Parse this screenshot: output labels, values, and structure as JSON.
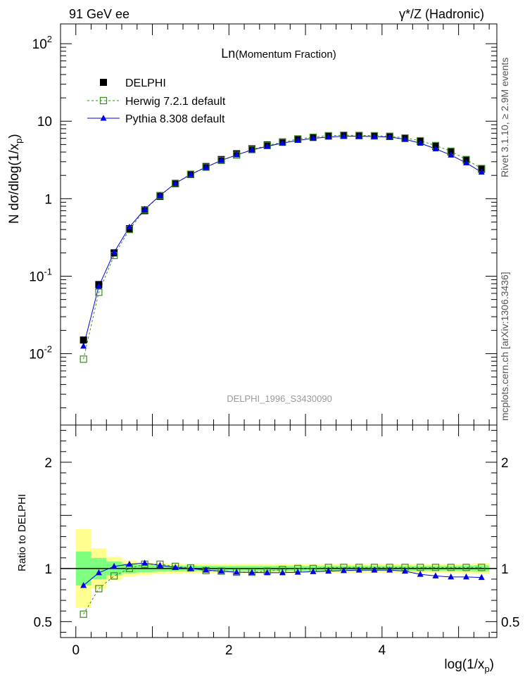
{
  "header": {
    "left": "91 GeV ee",
    "right": "γ*/Z (Hadronic)"
  },
  "side_labels": {
    "top": "Rivet 3.1.10, ≥ 2.9M events",
    "bottom": "mcplots.cern.ch [arXiv:1306.3436]"
  },
  "watermark": "DELPHI_1996_S3430090",
  "chart_data": [
    {
      "type": "scatter",
      "panel": "main",
      "title": "Ln(Momentum Fraction)",
      "xlabel": "log(1/x_p)",
      "ylabel": "N dσ/dlog(1/x_p)",
      "yscale": "log",
      "xlim": [
        -0.2,
        5.5
      ],
      "ylim": [
        0.0012,
        180
      ],
      "yticks": [
        0.01,
        0.1,
        1,
        10,
        100
      ],
      "ytick_labels": [
        "10^-2",
        "10^-1",
        "1",
        "10",
        "10^2"
      ],
      "legend_placement": "top-left",
      "x": [
        0.1,
        0.3,
        0.5,
        0.7,
        0.9,
        1.1,
        1.3,
        1.5,
        1.7,
        1.9,
        2.1,
        2.3,
        2.5,
        2.7,
        2.9,
        3.1,
        3.3,
        3.5,
        3.7,
        3.9,
        4.1,
        4.3,
        4.5,
        4.7,
        4.9,
        5.1,
        5.3
      ],
      "series": [
        {
          "name": "DELPHI",
          "color": "#000000",
          "marker": "filled-square",
          "values": [
            0.015,
            0.078,
            0.2,
            0.41,
            0.7,
            1.07,
            1.56,
            2.05,
            2.6,
            3.2,
            3.8,
            4.4,
            4.95,
            5.4,
            5.9,
            6.2,
            6.45,
            6.55,
            6.5,
            6.45,
            6.35,
            6.0,
            5.5,
            4.75,
            4.0,
            3.15,
            2.4
          ]
        },
        {
          "name": "Herwig 7.2.1 default",
          "color": "#3a8a1f",
          "marker": "open-square",
          "line": "dashed",
          "values": [
            0.0085,
            0.062,
            0.185,
            0.4,
            0.72,
            1.1,
            1.58,
            2.07,
            2.55,
            3.12,
            3.65,
            4.3,
            4.85,
            5.35,
            5.9,
            6.2,
            6.5,
            6.6,
            6.55,
            6.5,
            6.4,
            6.08,
            5.6,
            4.85,
            4.1,
            3.2,
            2.45
          ]
        },
        {
          "name": "Pythia 8.308 default",
          "color": "#0000e6",
          "marker": "filled-triangle",
          "line": "solid",
          "values": [
            0.0125,
            0.074,
            0.203,
            0.43,
            0.73,
            1.1,
            1.58,
            2.05,
            2.55,
            3.12,
            3.67,
            4.25,
            4.75,
            5.22,
            5.65,
            6.0,
            6.25,
            6.4,
            6.4,
            6.35,
            6.25,
            5.85,
            5.2,
            4.4,
            3.65,
            2.9,
            2.2
          ]
        }
      ]
    },
    {
      "type": "scatter",
      "panel": "ratio",
      "xlabel": "log(1/x_p)",
      "ylabel": "Ratio to DELPHI",
      "xlim": [
        -0.2,
        5.5
      ],
      "ylim": [
        0.35,
        2.35
      ],
      "xticks": [
        0,
        2,
        4
      ],
      "yticks": [
        0.5,
        1,
        2
      ],
      "x": [
        0.1,
        0.3,
        0.5,
        0.7,
        0.9,
        1.1,
        1.3,
        1.5,
        1.7,
        1.9,
        2.1,
        2.3,
        2.5,
        2.7,
        2.9,
        3.1,
        3.3,
        3.5,
        3.7,
        3.9,
        4.1,
        4.3,
        4.5,
        4.7,
        4.9,
        5.1,
        5.3
      ],
      "band_inner": [
        0.16,
        0.1,
        0.065,
        0.045,
        0.035,
        0.03,
        0.028,
        0.026,
        0.025,
        0.024,
        0.024,
        0.024,
        0.024,
        0.024,
        0.024,
        0.024,
        0.024,
        0.024,
        0.024,
        0.024,
        0.024,
        0.024,
        0.024,
        0.024,
        0.024,
        0.026,
        0.03
      ],
      "band_outer": [
        0.37,
        0.19,
        0.11,
        0.075,
        0.06,
        0.05,
        0.047,
        0.045,
        0.044,
        0.043,
        0.043,
        0.043,
        0.043,
        0.043,
        0.043,
        0.043,
        0.043,
        0.043,
        0.043,
        0.043,
        0.043,
        0.043,
        0.043,
        0.043,
        0.043,
        0.045,
        0.05
      ],
      "band_colors": {
        "inner": "#7fff7f",
        "outer": "#ffff8f"
      },
      "series": [
        {
          "name": "Herwig 7.2.1 default",
          "color": "#3a8a1f",
          "marker": "open-square",
          "line": "dashed",
          "values": [
            0.57,
            0.81,
            0.93,
            1.0,
            1.04,
            1.04,
            1.02,
            1.005,
            0.98,
            0.975,
            0.965,
            0.965,
            0.975,
            0.99,
            1.0,
            1.0,
            1.01,
            1.01,
            1.01,
            1.01,
            1.01,
            1.01,
            1.01,
            1.01,
            1.01,
            1.01,
            1.01
          ]
        },
        {
          "name": "Pythia 8.308 default",
          "color": "#0000e6",
          "marker": "filled-triangle",
          "line": "solid",
          "values": [
            0.84,
            0.96,
            1.02,
            1.04,
            1.05,
            1.03,
            1.01,
            1.0,
            0.985,
            0.975,
            0.965,
            0.963,
            0.96,
            0.96,
            0.965,
            0.97,
            0.975,
            0.98,
            0.985,
            0.985,
            0.985,
            0.975,
            0.945,
            0.93,
            0.92,
            0.92,
            0.915
          ]
        }
      ]
    }
  ]
}
